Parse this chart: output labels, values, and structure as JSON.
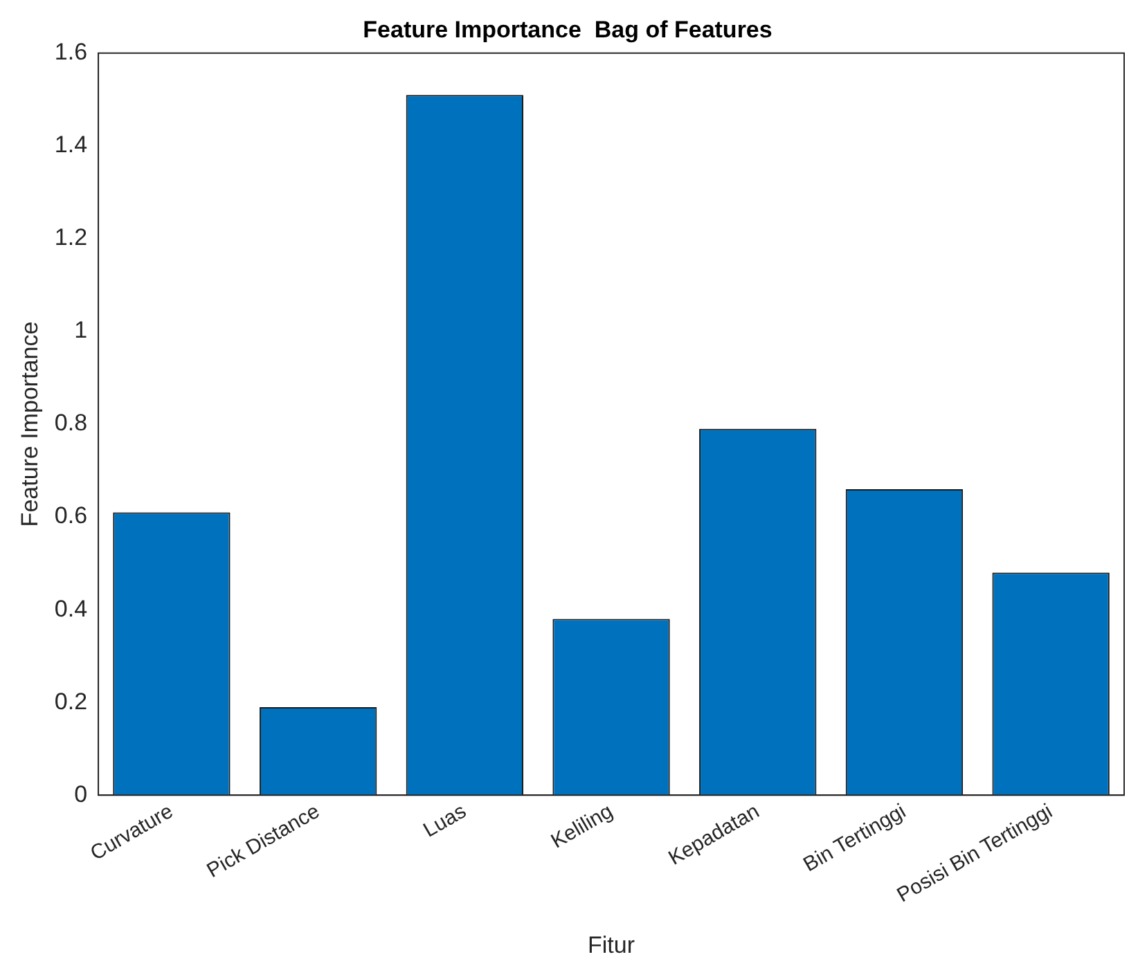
{
  "chart_data": {
    "type": "bar",
    "title": "Feature Importance  Bag of Features",
    "xlabel": "Fitur",
    "ylabel": "Feature Importance",
    "categories": [
      "Curvature",
      "Pick Distance",
      "Luas",
      "Keliling",
      "Kepadatan",
      "Bin Tertinggi",
      "Posisi Bin Tertinggi"
    ],
    "values": [
      0.61,
      0.19,
      1.51,
      0.38,
      0.79,
      0.66,
      0.48
    ],
    "color": "#0072bd",
    "ylim": [
      0,
      1.6
    ],
    "yticks": [
      0,
      0.2,
      0.4,
      0.6,
      0.8,
      1,
      1.2,
      1.4,
      1.6
    ],
    "grid": false,
    "legend": false
  }
}
